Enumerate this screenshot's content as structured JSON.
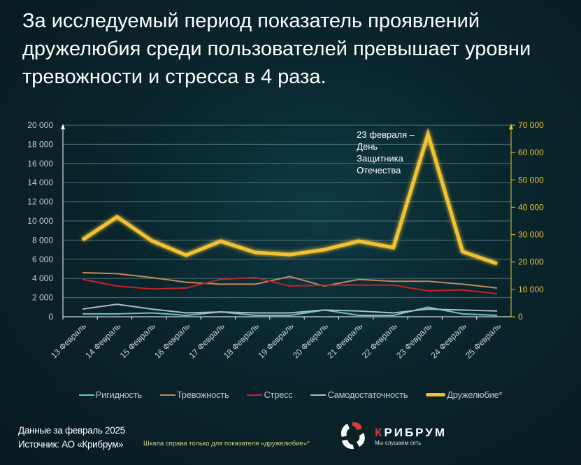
{
  "title": "За исследуемый период показатель проявлений дружелюбия среди пользователей превышает уровни тревожности и стресса в 4 раза.",
  "chart_data": {
    "type": "line",
    "categories": [
      "13 Февраль",
      "14 Февраль",
      "15 Февраль",
      "16 Февраль",
      "17 Февраль",
      "18 Февраль",
      "19 Февраль",
      "20 Февраль",
      "21 Февраль",
      "22 Февраль",
      "23 Февраль",
      "24 Февраль",
      "25 Февраль"
    ],
    "y_left": {
      "range": [
        0,
        20000
      ],
      "ticks": [
        "0",
        "2 000",
        "4 000",
        "6 000",
        "8 000",
        "10 000",
        "12 000",
        "14 000",
        "16 000",
        "18 000",
        "20 000"
      ]
    },
    "y_right": {
      "range": [
        0,
        70000
      ],
      "ticks": [
        "0",
        "10 000",
        "20 000",
        "30 000",
        "40 000",
        "50 000",
        "60 000",
        "70 000"
      ]
    },
    "grid": true,
    "legend": "bottom",
    "series": [
      {
        "name": "Ригидность",
        "axis": "left",
        "color": "#6fc3c8",
        "values": [
          300,
          300,
          400,
          150,
          500,
          150,
          150,
          700,
          150,
          150,
          1000,
          300,
          150
        ]
      },
      {
        "name": "Тревожность",
        "axis": "left",
        "color": "#c8875a",
        "values": [
          4600,
          4500,
          4100,
          3600,
          3400,
          3400,
          4200,
          3200,
          3900,
          3700,
          3700,
          3400,
          3000
        ]
      },
      {
        "name": "Стресс",
        "axis": "left",
        "color": "#c0242a",
        "values": [
          3900,
          3200,
          2900,
          3000,
          3900,
          4100,
          3200,
          3300,
          3300,
          3300,
          2700,
          2800,
          2400
        ]
      },
      {
        "name": "Самодостаточность",
        "axis": "left",
        "color": "#a9bcc6",
        "values": [
          800,
          1300,
          800,
          400,
          500,
          400,
          400,
          700,
          600,
          400,
          800,
          700,
          600
        ]
      },
      {
        "name": "Дружелюбие*",
        "axis": "right",
        "color": "#f2c230",
        "values": [
          28100,
          36500,
          27800,
          22500,
          27600,
          23500,
          22700,
          24500,
          27600,
          25300,
          66700,
          23800,
          19400
        ]
      }
    ],
    "annotation": {
      "category": "23 Февраль",
      "text": [
        "23 февраля –",
        "День",
        "Защитника",
        "Отечества"
      ]
    }
  },
  "footer": {
    "data_period": "Данные за февраль 2025",
    "source": "Источник: АО «Крибрум»",
    "note": "Шкала справа  только для показателя «дружелюбие»*"
  },
  "logo": {
    "brand_first": "К",
    "brand_rest": "РИБРУМ",
    "tagline": "Мы слушаем сеть"
  }
}
